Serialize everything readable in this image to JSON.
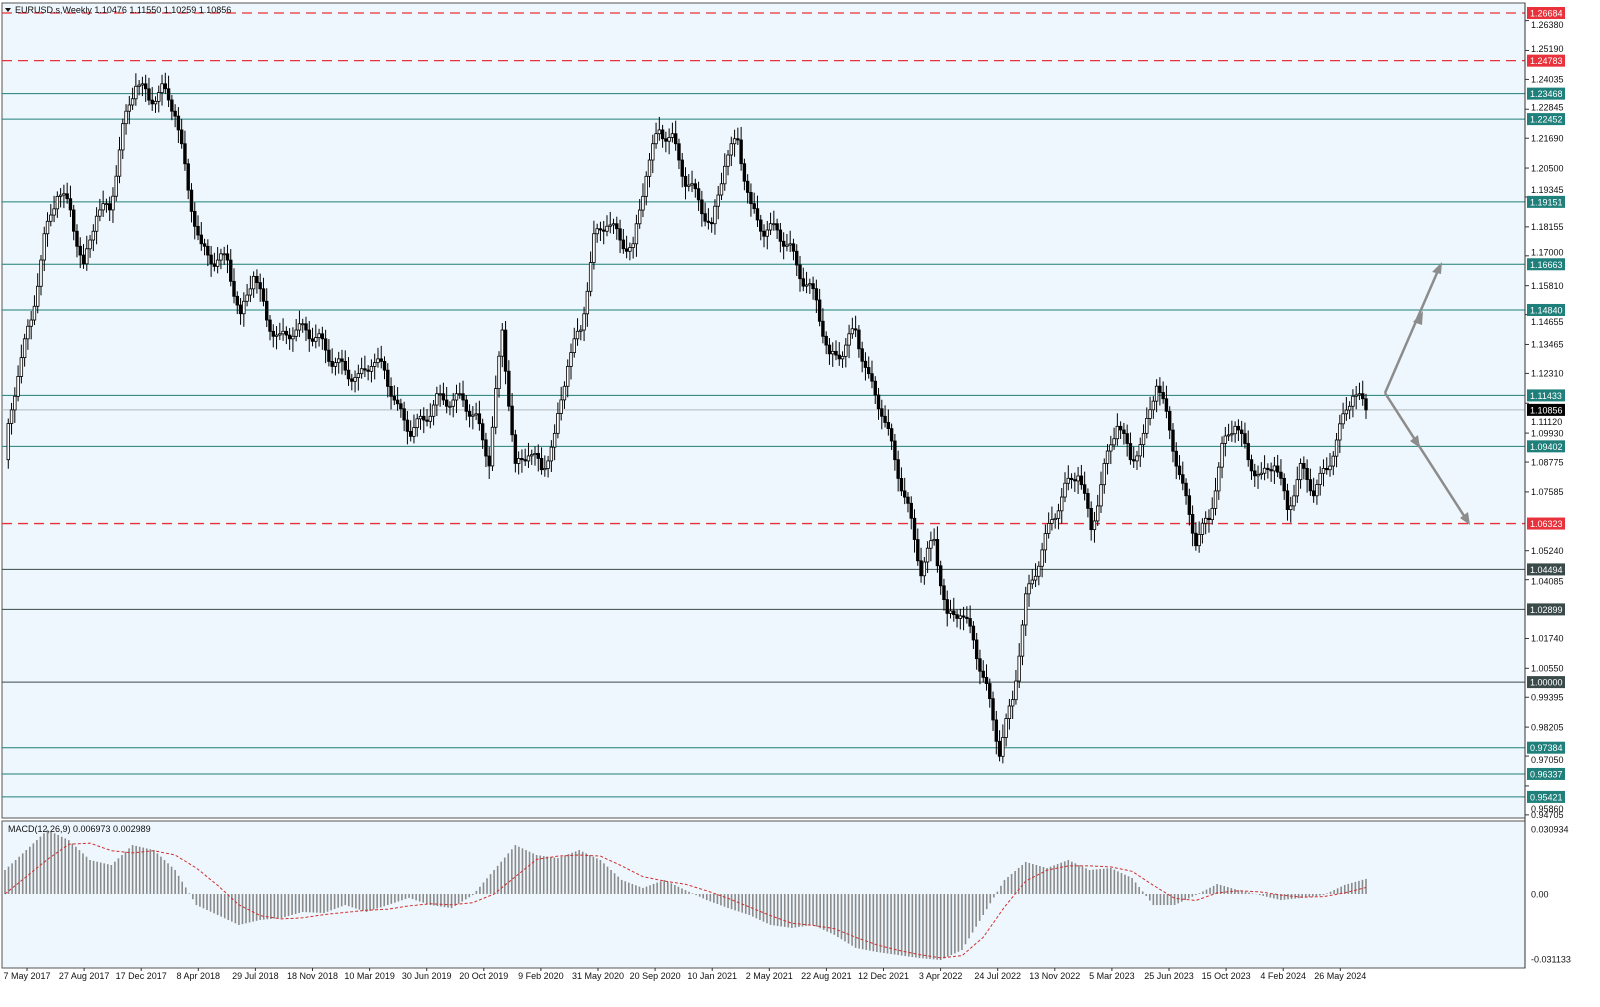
{
  "header": {
    "symbol_line": "EURUSD.s,Weekly  1.10476 1.11550 1.10259 1.10856"
  },
  "colors": {
    "background": "#eef7fd",
    "level_teal": "#1f7f7a",
    "level_dark": "#3a4a48",
    "level_red": "#e8313a",
    "candle": "#000000",
    "histogram": "#8a8a8a",
    "signal": "#d03030",
    "arrow": "#8c8c8c",
    "current_price": "#000000"
  },
  "chart_data": [
    {
      "type": "candlestick",
      "title": "EURUSD.s,Weekly",
      "ohlc_last": {
        "open": 1.10476,
        "high": 1.1155,
        "low": 1.10259,
        "close": 1.10856
      },
      "ylim": [
        0.94584,
        1.27043
      ],
      "y_ticks": [
        "1.26380",
        "1.25190",
        "1.24035",
        "1.22845",
        "1.21690",
        "1.20500",
        "1.19345",
        "1.18155",
        "1.17000",
        "1.15810",
        "1.14655",
        "1.13465",
        "1.12310",
        "1.11120",
        "1.09930",
        "1.08775",
        "1.07585",
        "1.05240",
        "1.04085",
        "1.01740",
        "1.00550",
        "0.99395",
        "0.98205",
        "0.97050",
        "0.95860",
        "0.94705"
      ],
      "x_ticks": [
        "7 May 2017",
        "27 Aug 2017",
        "17 Dec 2017",
        "8 Apr 2018",
        "29 Jul 2018",
        "18 Nov 2018",
        "10 Mar 2019",
        "30 Jun 2019",
        "20 Oct 2019",
        "9 Feb 2020",
        "31 May 2020",
        "20 Sep 2020",
        "10 Jan 2021",
        "2 May 2021",
        "22 Aug 2021",
        "12 Dec 2021",
        "3 Apr 2022",
        "24 Jul 2022",
        "13 Nov 2022",
        "5 Mar 2023",
        "25 Jun 2023",
        "15 Oct 2023",
        "4 Feb 2024",
        "26 May 2024"
      ],
      "closes": [
        1.0927,
        1.1244,
        1.1444,
        1.1763,
        1.1962,
        1.1883,
        1.1643,
        1.1883,
        1.1883,
        1.2202,
        1.2401,
        1.2321,
        1.2361,
        1.2282,
        1.1962,
        1.1723,
        1.1683,
        1.1683,
        1.1444,
        1.1643,
        1.1444,
        1.1364,
        1.1404,
        1.1404,
        1.1364,
        1.1284,
        1.1244,
        1.1205,
        1.1284,
        1.1244,
        1.1085,
        1.1005,
        1.1045,
        1.1125,
        1.1125,
        1.1125,
        1.1045,
        1.0887,
        1.1404,
        1.0847,
        1.0927,
        1.0847,
        1.0967,
        1.1284,
        1.1404,
        1.1763,
        1.1843,
        1.1763,
        1.1723,
        1.2042,
        1.2202,
        1.2162,
        1.2002,
        1.1923,
        1.1803,
        1.2082,
        1.2162,
        1.1883,
        1.1803,
        1.1803,
        1.1723,
        1.1604,
        1.1524,
        1.1284,
        1.1324,
        1.1404,
        1.1205,
        1.1085,
        1.0887,
        1.0688,
        1.0449,
        1.0569,
        1.0249,
        1.0289,
        1.0168,
        0.9969,
        0.9729,
        0.993,
        1.0327,
        1.0487,
        1.0648,
        1.0768,
        1.0847,
        1.0608,
        1.0847,
        1.1045,
        1.0887,
        1.0967,
        1.1205,
        1.1005,
        1.0768,
        1.0569,
        1.0648,
        1.0927,
        1.1045,
        1.0887,
        1.0808,
        1.0887,
        1.0688,
        1.0847,
        1.0768,
        1.0847,
        1.1005,
        1.1165,
        1.1085
      ],
      "levels": [
        {
          "price": 1.26684,
          "label": "1.26684",
          "style": "red-dashed"
        },
        {
          "price": 1.24783,
          "label": "1.24783",
          "style": "red-dashed"
        },
        {
          "price": 1.23468,
          "label": "1.23468",
          "style": "teal"
        },
        {
          "price": 1.22452,
          "label": "1.22452",
          "style": "teal"
        },
        {
          "price": 1.19151,
          "label": "1.19151",
          "style": "teal"
        },
        {
          "price": 1.16663,
          "label": "1.16663",
          "style": "teal"
        },
        {
          "price": 1.1484,
          "label": "1.14840",
          "style": "teal"
        },
        {
          "price": 1.11433,
          "label": "1.11433",
          "style": "teal"
        },
        {
          "price": 1.10856,
          "label": "1.10856",
          "style": "current"
        },
        {
          "price": 1.09402,
          "label": "1.09402",
          "style": "teal"
        },
        {
          "price": 1.06323,
          "label": "1.06323",
          "style": "red-dashed"
        },
        {
          "price": 1.04494,
          "label": "1.04494",
          "style": "dark"
        },
        {
          "price": 1.02899,
          "label": "1.02899",
          "style": "dark"
        },
        {
          "price": 1.0,
          "label": "1.00000",
          "style": "dark"
        },
        {
          "price": 0.97384,
          "label": "0.97384",
          "style": "teal"
        },
        {
          "price": 0.96337,
          "label": "0.96337",
          "style": "teal"
        },
        {
          "price": 0.95421,
          "label": "0.95421",
          "style": "teal"
        }
      ]
    },
    {
      "type": "bar",
      "title": "MACD(12,26,9) 0.006973 0.002989",
      "ylim": [
        -0.031133,
        0.030934
      ],
      "y_ticks": [
        "0.030934",
        "0.00",
        "-0.031133"
      ],
      "macd": [
        0.0111,
        0.0203,
        0.0296,
        0.0249,
        0.0157,
        0.0134,
        0.0226,
        0.0203,
        0.0111,
        -0.0051,
        -0.0097,
        -0.0143,
        -0.012,
        -0.0111,
        -0.0083,
        -0.0088,
        -0.0051,
        -0.0083,
        -0.0051,
        -0.0018,
        -0.0051,
        -0.0065,
        -0.0005,
        0.0111,
        0.0226,
        0.018,
        0.0166,
        0.0203,
        0.0157,
        0.0065,
        0.0028,
        0.0065,
        0.0018,
        -0.0028,
        -0.0065,
        -0.0097,
        -0.0143,
        -0.0157,
        -0.0143,
        -0.0189,
        -0.0249,
        -0.0268,
        -0.0282,
        -0.0296,
        -0.0305,
        -0.0259,
        -0.0097,
        0.0065,
        0.0148,
        0.012,
        0.0157,
        0.0111,
        0.012,
        0.0074,
        -0.0051,
        -0.0051,
        -0.0005,
        0.0046,
        0.0018,
        -0.0005,
        -0.0028,
        -0.0018,
        -0.0005,
        0.0042,
        0.007
      ],
      "signal": [
        0.0,
        0.008,
        0.016,
        0.023,
        0.0235,
        0.02,
        0.019,
        0.02,
        0.018,
        0.012,
        0.004,
        -0.005,
        -0.01,
        -0.0115,
        -0.011,
        -0.0095,
        -0.0085,
        -0.0075,
        -0.007,
        -0.0055,
        -0.0045,
        -0.005,
        -0.004,
        0.0,
        0.008,
        0.016,
        0.0175,
        0.018,
        0.0175,
        0.013,
        0.008,
        0.006,
        0.0045,
        0.0015,
        -0.002,
        -0.006,
        -0.01,
        -0.0135,
        -0.0145,
        -0.016,
        -0.02,
        -0.0235,
        -0.026,
        -0.028,
        -0.0295,
        -0.0285,
        -0.02,
        -0.006,
        0.006,
        0.011,
        0.013,
        0.013,
        0.0125,
        0.0105,
        0.004,
        -0.002,
        -0.003,
        0.0005,
        0.0015,
        0.001,
        -0.0005,
        -0.0015,
        -0.0012,
        0.0005,
        0.003
      ]
    }
  ]
}
